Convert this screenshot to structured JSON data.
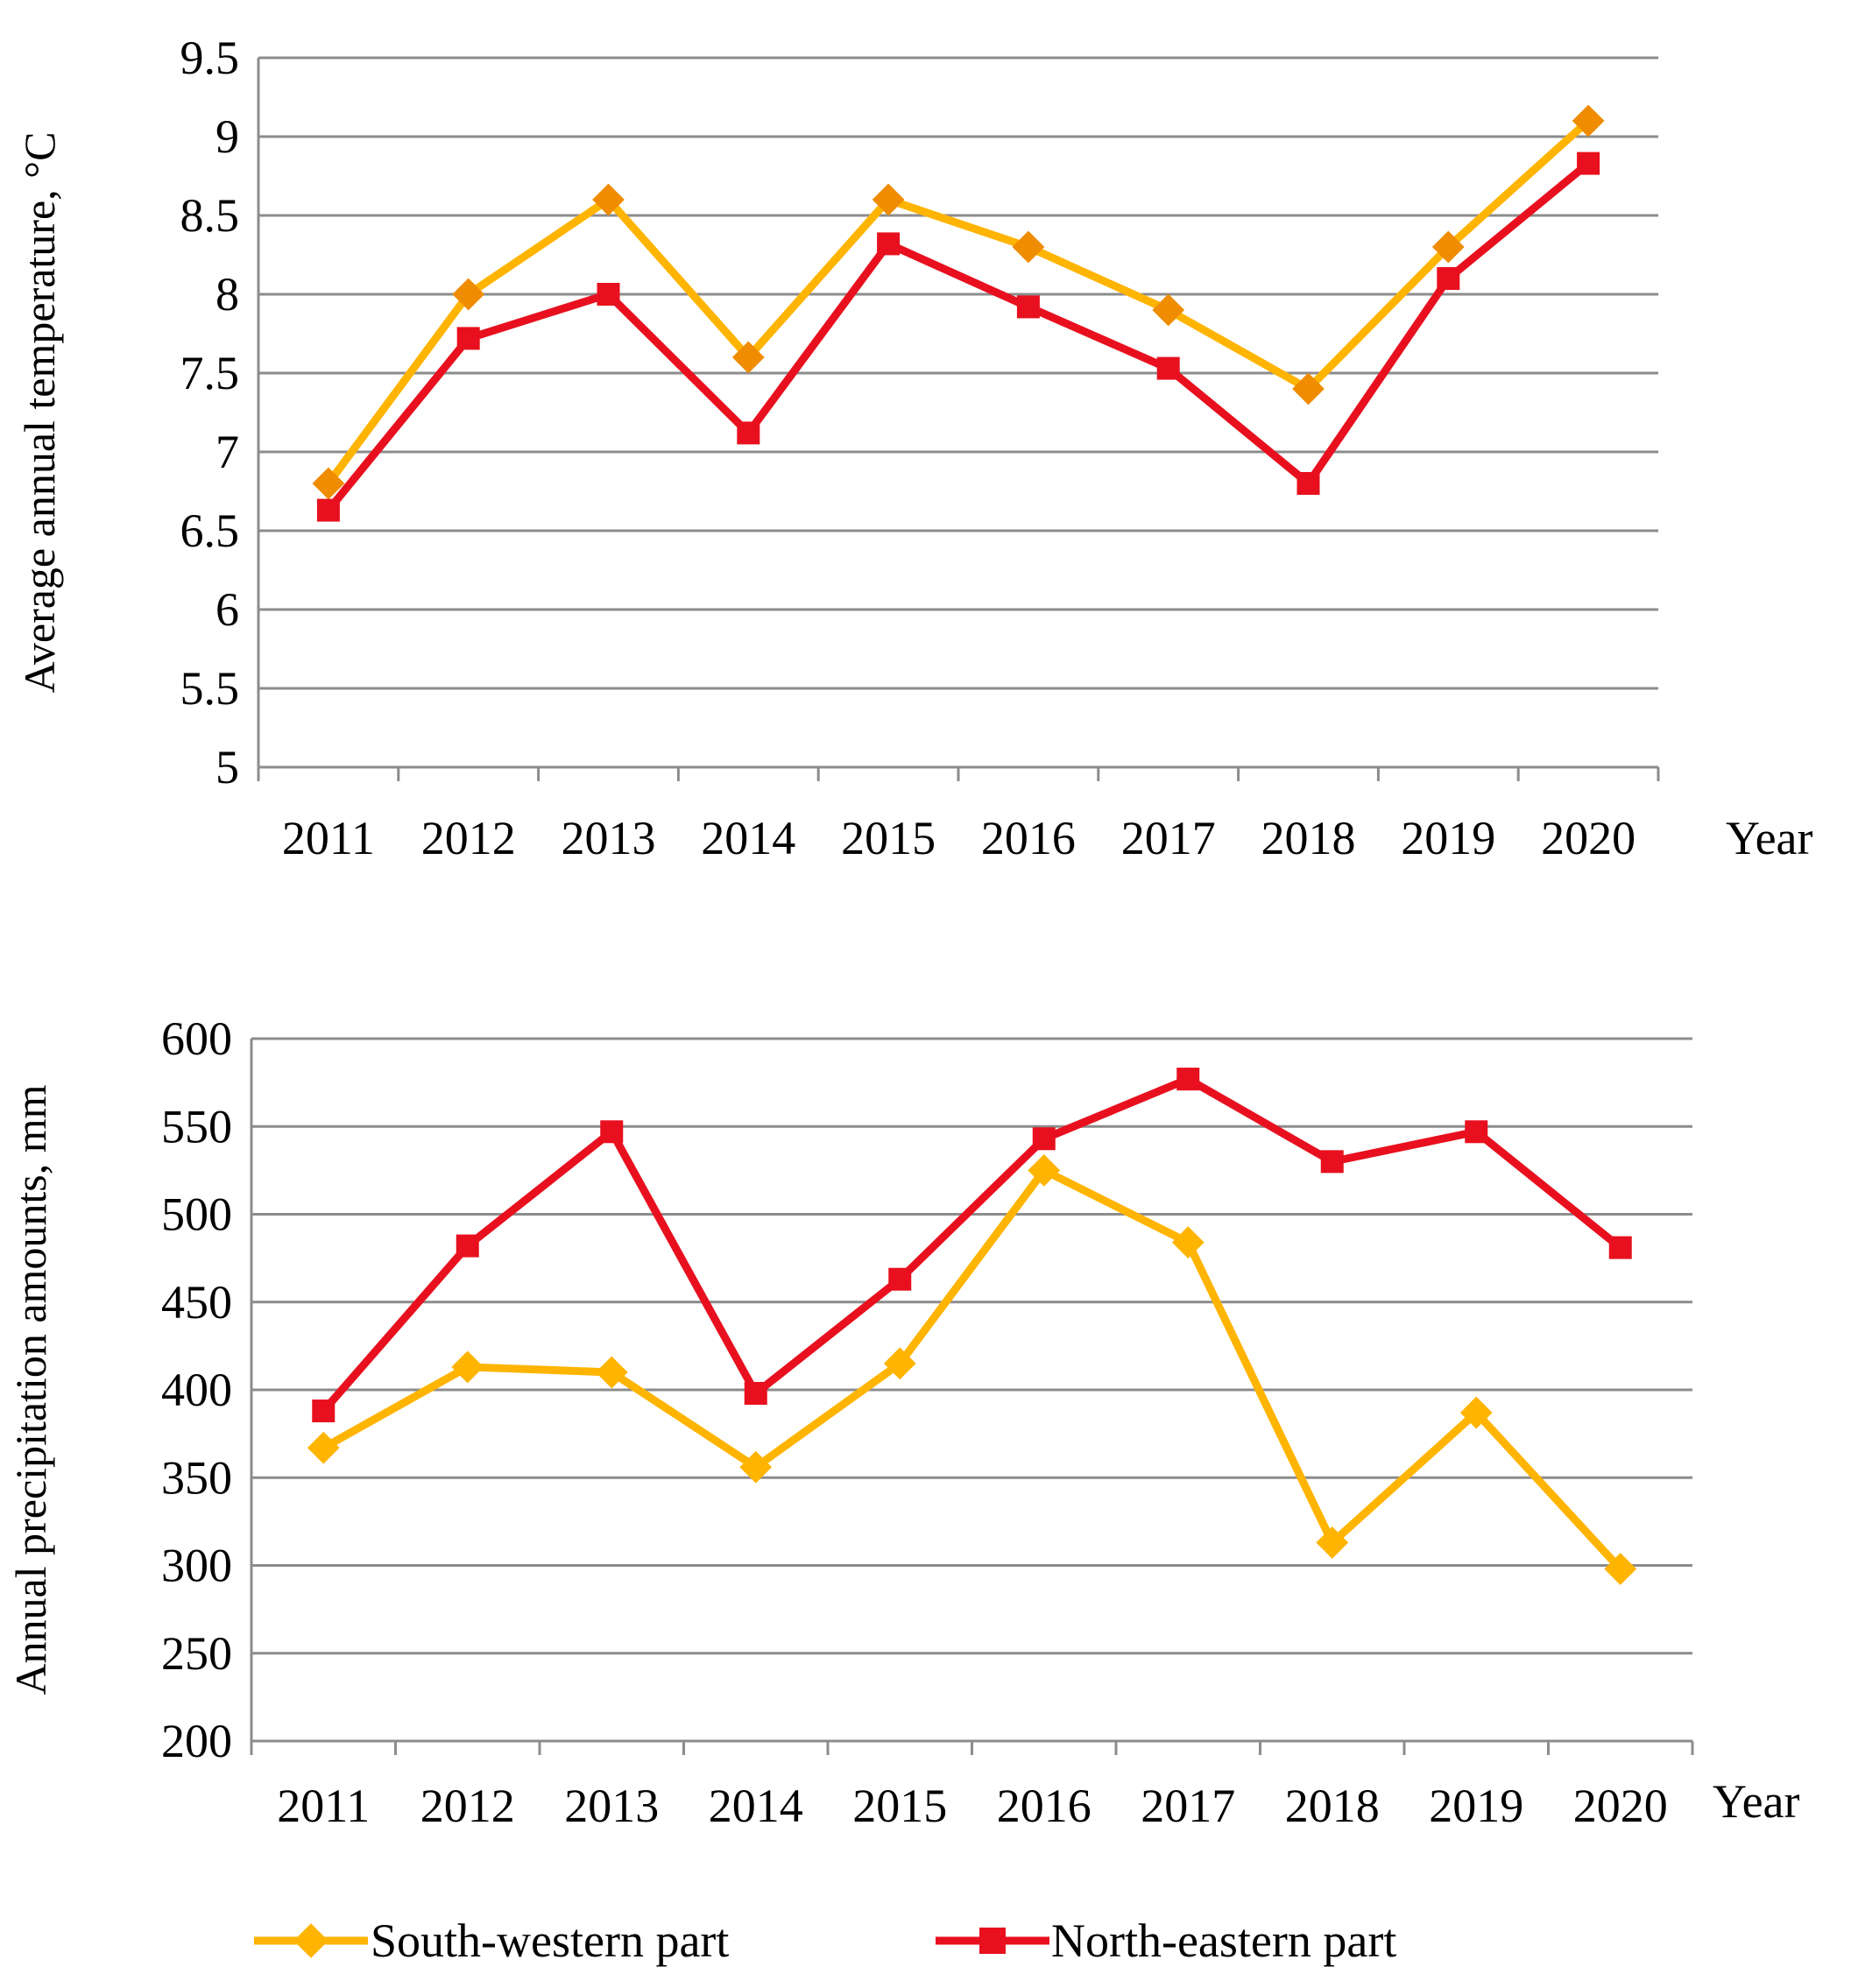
{
  "chart_data": [
    {
      "type": "line",
      "ylabel": "Average annual temperature, °C",
      "xlabel": "Year",
      "categories": [
        "2011",
        "2012",
        "2013",
        "2014",
        "2015",
        "2016",
        "2017",
        "2018",
        "2019",
        "2020"
      ],
      "ylim": [
        5,
        9.5
      ],
      "yticks": [
        "5",
        "5.5",
        "6",
        "6.5",
        "7",
        "7.5",
        "8",
        "8.5",
        "9",
        "9.5"
      ],
      "grid": true,
      "series": [
        {
          "name": "South-western part",
          "color": "#ffb400",
          "marker": "diamond",
          "marker_color": "#f08c00",
          "values": [
            6.8,
            8.0,
            8.6,
            7.6,
            8.6,
            8.3,
            7.9,
            7.4,
            8.3,
            9.1
          ]
        },
        {
          "name": "North-eastern part",
          "color": "#e8101e",
          "marker": "square",
          "marker_color": "#e8101e",
          "values": [
            6.63,
            7.72,
            8.0,
            7.12,
            8.32,
            7.92,
            7.53,
            6.8,
            8.1,
            8.83
          ]
        }
      ]
    },
    {
      "type": "line",
      "ylabel": "Annual precipitation amounts, mm",
      "xlabel": "Year",
      "categories": [
        "2011",
        "2012",
        "2013",
        "2014",
        "2015",
        "2016",
        "2017",
        "2018",
        "2019",
        "2020"
      ],
      "ylim": [
        200,
        600
      ],
      "yticks": [
        "200",
        "250",
        "300",
        "350",
        "400",
        "450",
        "500",
        "550",
        "600"
      ],
      "grid": true,
      "series": [
        {
          "name": "South-western part",
          "color": "#ffb400",
          "marker": "diamond",
          "marker_color": "#ffb400",
          "values": [
            367,
            413,
            410,
            356,
            415,
            525,
            484,
            313,
            387,
            298
          ]
        },
        {
          "name": "North-eastern part",
          "color": "#e8101e",
          "marker": "square",
          "marker_color": "#e8101e",
          "values": [
            388,
            482,
            547,
            398,
            463,
            543,
            577,
            530,
            547,
            481
          ]
        }
      ]
    }
  ],
  "legend": {
    "position": "bottom",
    "items": [
      {
        "label": "South-western part",
        "color": "#ffb400",
        "marker": "diamond"
      },
      {
        "label": "North-eastern part",
        "color": "#e8101e",
        "marker": "square"
      }
    ]
  }
}
